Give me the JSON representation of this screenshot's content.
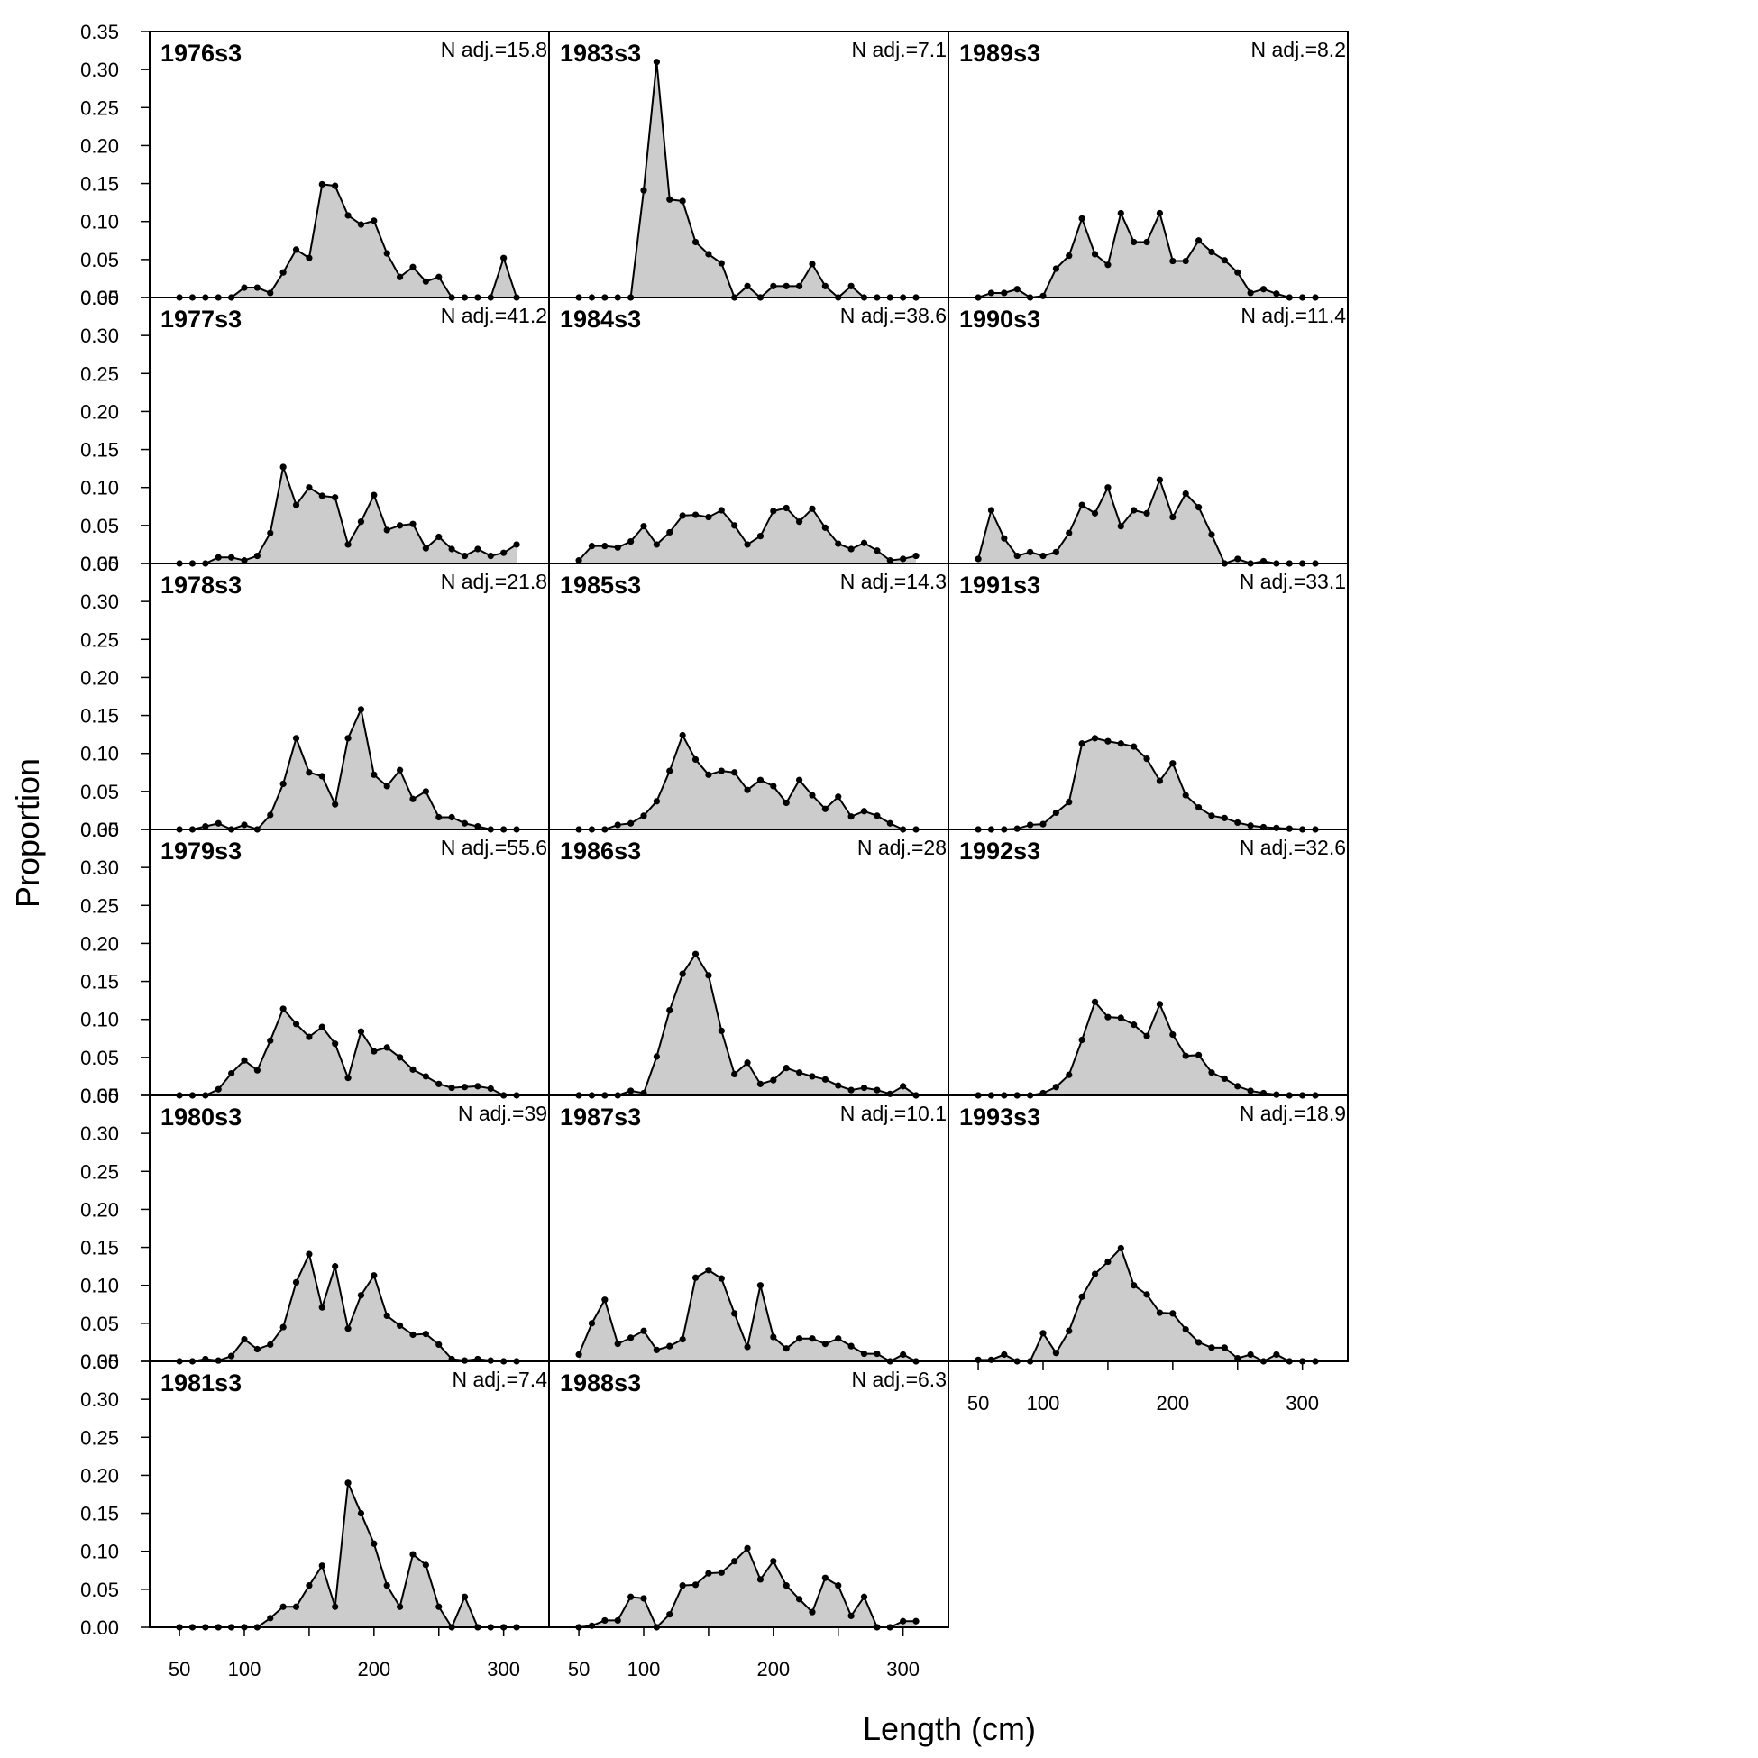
{
  "figure": {
    "xlabel": "Length (cm)",
    "ylabel": "Proportion"
  },
  "chart_data": {
    "type": "area",
    "x": [
      50,
      60,
      70,
      80,
      90,
      100,
      110,
      120,
      130,
      140,
      150,
      160,
      170,
      180,
      190,
      200,
      210,
      220,
      230,
      240,
      250,
      260,
      270,
      280,
      290,
      300,
      310
    ],
    "xticks": [
      50,
      100,
      200,
      300
    ],
    "yticks": [
      "0.00",
      "0.05",
      "0.10",
      "0.15",
      "0.20",
      "0.25",
      "0.30",
      "0.35"
    ],
    "ylim": [
      0,
      0.35
    ],
    "xlim": [
      27,
      335
    ],
    "fill_color": "#cccccc",
    "line_color": "#000000",
    "panels": [
      {
        "title": "1976s3",
        "n_adj": "N adj.=15.8",
        "col": 0,
        "row": 0,
        "values": [
          0,
          0,
          0,
          0,
          0,
          0.013,
          0.013,
          0.006,
          0.033,
          0.063,
          0.052,
          0.149,
          0.147,
          0.108,
          0.096,
          0.101,
          0.058,
          0.027,
          0.04,
          0.021,
          0.027,
          0,
          0,
          0,
          0,
          0.052,
          0
        ]
      },
      {
        "title": "1977s3",
        "n_adj": "N adj.=41.2",
        "col": 0,
        "row": 1,
        "values": [
          0,
          0,
          0,
          0.008,
          0.008,
          0.004,
          0.01,
          0.04,
          0.127,
          0.077,
          0.1,
          0.089,
          0.087,
          0.025,
          0.055,
          0.09,
          0.044,
          0.05,
          0.052,
          0.02,
          0.035,
          0.019,
          0.01,
          0.019,
          0.01,
          0.014,
          0.025
        ]
      },
      {
        "title": "1978s3",
        "n_adj": "N adj.=21.8",
        "col": 0,
        "row": 2,
        "values": [
          0,
          0,
          0.004,
          0.008,
          0,
          0.006,
          0,
          0.019,
          0.06,
          0.12,
          0.075,
          0.07,
          0.033,
          0.12,
          0.158,
          0.072,
          0.057,
          0.078,
          0.04,
          0.05,
          0.016,
          0.016,
          0.008,
          0.004,
          0,
          0,
          0
        ]
      },
      {
        "title": "1979s3",
        "n_adj": "N adj.=55.6",
        "col": 0,
        "row": 3,
        "values": [
          0,
          0,
          0,
          0.008,
          0.029,
          0.046,
          0.033,
          0.072,
          0.114,
          0.094,
          0.077,
          0.09,
          0.068,
          0.023,
          0.084,
          0.058,
          0.063,
          0.05,
          0.034,
          0.025,
          0.015,
          0.01,
          0.011,
          0.012,
          0.009,
          0,
          0
        ]
      },
      {
        "title": "1980s3",
        "n_adj": "N adj.=39",
        "col": 0,
        "row": 4,
        "values": [
          0,
          0,
          0.003,
          0.001,
          0.007,
          0.029,
          0.016,
          0.022,
          0.045,
          0.104,
          0.141,
          0.071,
          0.125,
          0.043,
          0.087,
          0.113,
          0.06,
          0.047,
          0.035,
          0.036,
          0.022,
          0.003,
          0.001,
          0.003,
          0.001,
          0,
          0
        ]
      },
      {
        "title": "1981s3",
        "n_adj": "N adj.=7.4",
        "col": 0,
        "row": 5,
        "values": [
          0,
          0,
          0,
          0,
          0,
          0,
          0,
          0.012,
          0.027,
          0.027,
          0.055,
          0.081,
          0.027,
          0.19,
          0.15,
          0.11,
          0.055,
          0.027,
          0.096,
          0.082,
          0.027,
          0,
          0.04,
          0,
          0,
          0,
          0
        ]
      },
      {
        "title": "1983s3",
        "n_adj": "N adj.=7.1",
        "col": 1,
        "row": 0,
        "values": [
          0,
          0,
          0,
          0,
          0,
          0.141,
          0.31,
          0.129,
          0.127,
          0.073,
          0.057,
          0.045,
          0,
          0.015,
          0,
          0.015,
          0.015,
          0.015,
          0.044,
          0.015,
          0,
          0.015,
          0,
          0,
          0,
          0,
          0
        ]
      },
      {
        "title": "1984s3",
        "n_adj": "N adj.=38.6",
        "col": 1,
        "row": 1,
        "values": [
          0.004,
          0.023,
          0.023,
          0.021,
          0.029,
          0.049,
          0.025,
          0.041,
          0.063,
          0.064,
          0.061,
          0.07,
          0.05,
          0.025,
          0.036,
          0.069,
          0.073,
          0.055,
          0.072,
          0.047,
          0.026,
          0.019,
          0.027,
          0.017,
          0.004,
          0.006,
          0.01
        ]
      },
      {
        "title": "1985s3",
        "n_adj": "N adj.=14.3",
        "col": 1,
        "row": 2,
        "values": [
          0,
          0,
          0,
          0.006,
          0.008,
          0.018,
          0.037,
          0.077,
          0.124,
          0.092,
          0.072,
          0.077,
          0.075,
          0.052,
          0.065,
          0.057,
          0.035,
          0.065,
          0.045,
          0.027,
          0.043,
          0.017,
          0.024,
          0.018,
          0.008,
          0,
          0
        ]
      },
      {
        "title": "1986s3",
        "n_adj": "N adj.=28",
        "col": 1,
        "row": 3,
        "values": [
          0,
          0,
          0,
          0,
          0.006,
          0.003,
          0.051,
          0.112,
          0.16,
          0.186,
          0.158,
          0.085,
          0.028,
          0.043,
          0.015,
          0.02,
          0.036,
          0.03,
          0.025,
          0.021,
          0.013,
          0.007,
          0.01,
          0.007,
          0.002,
          0.012,
          0
        ]
      },
      {
        "title": "1987s3",
        "n_adj": "N adj.=10.1",
        "col": 1,
        "row": 4,
        "values": [
          0.009,
          0.05,
          0.081,
          0.023,
          0.031,
          0.04,
          0.015,
          0.02,
          0.029,
          0.11,
          0.12,
          0.109,
          0.063,
          0.019,
          0.1,
          0.032,
          0.017,
          0.03,
          0.03,
          0.023,
          0.03,
          0.02,
          0.01,
          0.01,
          0,
          0.009,
          0
        ]
      },
      {
        "title": "1988s3",
        "n_adj": "N adj.=6.3",
        "col": 1,
        "row": 5,
        "values": [
          0,
          0.002,
          0.009,
          0.009,
          0.04,
          0.038,
          0,
          0.017,
          0.055,
          0.056,
          0.071,
          0.072,
          0.087,
          0.104,
          0.063,
          0.087,
          0.055,
          0.037,
          0.02,
          0.065,
          0.055,
          0.015,
          0.04,
          0,
          0,
          0.008,
          0.008
        ]
      },
      {
        "title": "1989s3",
        "n_adj": "N adj.=8.2",
        "col": 2,
        "row": 0,
        "values": [
          0,
          0.006,
          0.006,
          0.011,
          0,
          0.002,
          0.038,
          0.055,
          0.104,
          0.057,
          0.043,
          0.111,
          0.073,
          0.073,
          0.111,
          0.048,
          0.048,
          0.075,
          0.06,
          0.049,
          0.033,
          0.006,
          0.011,
          0.005,
          0,
          0,
          0
        ]
      },
      {
        "title": "1990s3",
        "n_adj": "N adj.=11.4",
        "col": 2,
        "row": 1,
        "values": [
          0.006,
          0.07,
          0.033,
          0.01,
          0.015,
          0.01,
          0.015,
          0.04,
          0.077,
          0.066,
          0.1,
          0.049,
          0.07,
          0.066,
          0.11,
          0.061,
          0.092,
          0.074,
          0.038,
          0,
          0.006,
          0,
          0.003,
          0,
          0,
          0,
          0
        ]
      },
      {
        "title": "1991s3",
        "n_adj": "N adj.=33.1",
        "col": 2,
        "row": 2,
        "values": [
          0,
          0,
          0,
          0.001,
          0.006,
          0.007,
          0.022,
          0.036,
          0.113,
          0.12,
          0.116,
          0.113,
          0.109,
          0.093,
          0.064,
          0.087,
          0.045,
          0.029,
          0.018,
          0.015,
          0.009,
          0.005,
          0.003,
          0.002,
          0.001,
          0,
          0
        ]
      },
      {
        "title": "1992s3",
        "n_adj": "N adj.=32.6",
        "col": 2,
        "row": 3,
        "values": [
          0,
          0,
          0,
          0,
          0,
          0.003,
          0.011,
          0.027,
          0.073,
          0.123,
          0.103,
          0.102,
          0.093,
          0.078,
          0.12,
          0.08,
          0.052,
          0.053,
          0.03,
          0.022,
          0.012,
          0.006,
          0.003,
          0.001,
          0,
          0,
          0
        ]
      },
      {
        "title": "1993s3",
        "n_adj": "N adj.=18.9",
        "col": 2,
        "row": 4,
        "values": [
          0.002,
          0.002,
          0.009,
          0,
          0,
          0.037,
          0.011,
          0.04,
          0.085,
          0.115,
          0.131,
          0.149,
          0.1,
          0.088,
          0.064,
          0.063,
          0.042,
          0.025,
          0.018,
          0.018,
          0.004,
          0.009,
          0,
          0.009,
          0,
          0,
          0
        ]
      }
    ]
  }
}
